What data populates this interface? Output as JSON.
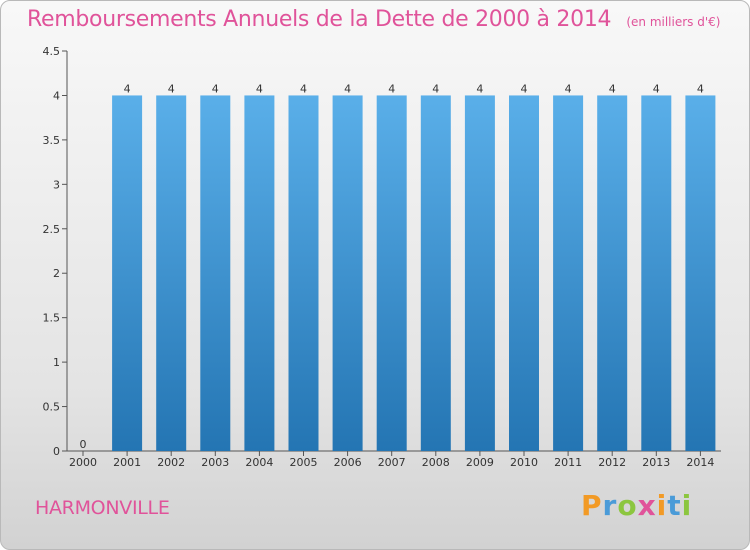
{
  "chart_data": {
    "type": "bar",
    "title": "Remboursements Annuels de la Dette de 2000 à 2014",
    "subtitle": "(en milliers d'€)",
    "categories": [
      "2000",
      "2001",
      "2002",
      "2003",
      "2004",
      "2005",
      "2006",
      "2007",
      "2008",
      "2009",
      "2010",
      "2011",
      "2012",
      "2013",
      "2014"
    ],
    "values": [
      0,
      4,
      4,
      4,
      4,
      4,
      4,
      4,
      4,
      4,
      4,
      4,
      4,
      4,
      4
    ],
    "data_labels": [
      "0",
      "4",
      "4",
      "4",
      "4",
      "4",
      "4",
      "4",
      "4",
      "4",
      "4",
      "4",
      "4",
      "4",
      "4"
    ],
    "y_ticks": [
      "0",
      "0.5",
      "1",
      "1.5",
      "2",
      "2.5",
      "3",
      "3.5",
      "4",
      "4.5"
    ],
    "ylim": [
      0,
      4.5
    ],
    "xlabel": "",
    "ylabel": "",
    "grid": false,
    "bar_color_top": "#5aafe9",
    "bar_color_bottom": "#2475b3"
  },
  "footer": {
    "commune": "HARMONVILLE"
  },
  "brand": {
    "letters": [
      "P",
      "r",
      "o",
      "x",
      "i",
      "t",
      "i"
    ],
    "colors": [
      "#f29a25",
      "#4a9bd8",
      "#8cc63f",
      "#e0539a",
      "#f29a25",
      "#4a9bd8",
      "#8cc63f"
    ]
  },
  "colors": {
    "title": "#e0539a",
    "axis": "#555555"
  }
}
